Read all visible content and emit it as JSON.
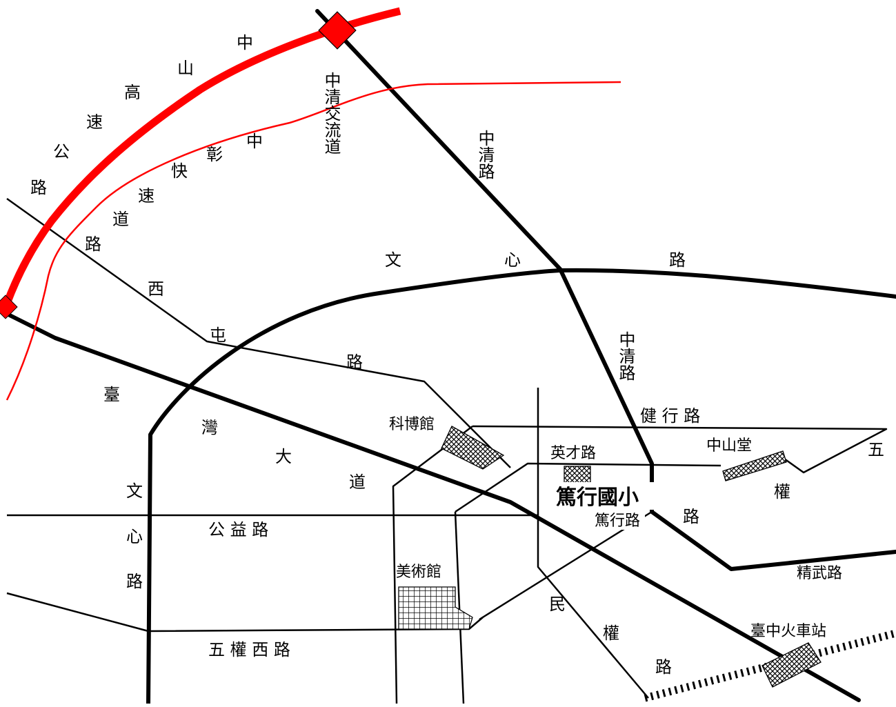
{
  "map": {
    "colors": {
      "highway": "#ff0000",
      "expressway": "#ff0000",
      "road": "#000000",
      "background": "#ffffff"
    },
    "labels": {
      "hwy_1": "中",
      "hwy_2": "山",
      "hwy_3": "高",
      "hwy_4": "速",
      "hwy_5": "公",
      "hwy_6": "路",
      "exp_1": "中",
      "exp_2": "彰",
      "exp_3": "快",
      "exp_4": "速",
      "exp_5": "道",
      "exp_6": "路",
      "interchange": "中清交流道",
      "zhongqing_upper": "中清路",
      "zhongqing_lower": "中清路",
      "wenxin_1": "文",
      "wenxin_2": "心",
      "wenxin_3": "路",
      "xitun_1": "西",
      "xitun_2": "屯",
      "xitun_3": "路",
      "taiwan_1": "臺",
      "taiwan_2": "灣",
      "taiwan_3": "大",
      "taiwan_4": "道",
      "wenxin_v1": "文",
      "wenxin_v2": "心",
      "wenxin_v3": "路",
      "gongyi": "公 益 路",
      "wuquan_west": "五 權 西 路",
      "jianxing": "健 行 路",
      "museum_science": "科博館",
      "yingcai": "英才路",
      "chungshan_hall": "中山堂",
      "wu_1": "五",
      "quan_1": "權",
      "lu_1": "路",
      "school": "篤行國小",
      "duxing": "篤行路",
      "jingwu": "精武路",
      "art_museum": "美術館",
      "min_1": "民",
      "min_2": "權",
      "min_3": "路",
      "station": "臺中火車站"
    }
  }
}
